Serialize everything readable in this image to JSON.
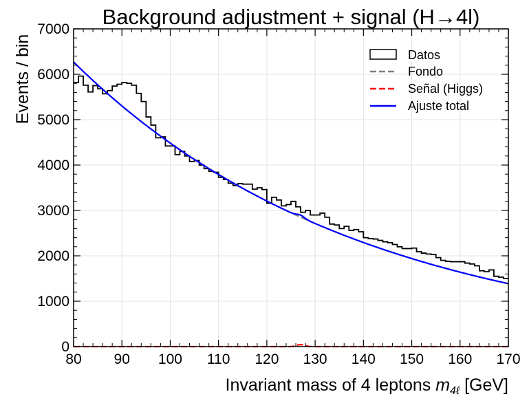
{
  "chart_data": {
    "type": "histogram",
    "title": "Background adjustment + signal (H→4l)",
    "xlabel_prefix": "Invariant mass of 4 leptons ",
    "xlabel_symbol": "m",
    "xlabel_sub": "4ℓ",
    "xlabel_suffix": " [GeV]",
    "ylabel": "Events / bin",
    "xlim": [
      80,
      170
    ],
    "ylim": [
      0,
      7000
    ],
    "x_ticks": [
      "80",
      "90",
      "100",
      "110",
      "120",
      "130",
      "140",
      "150",
      "160",
      "170"
    ],
    "y_ticks": [
      "0",
      "1000",
      "2000",
      "3000",
      "4000",
      "5000",
      "6000",
      "7000"
    ],
    "grid": true,
    "legend_position": "upper right",
    "bin_edges_start": 80,
    "bin_width": 1,
    "series": [
      {
        "name": "Datos",
        "style": "step",
        "color": "#000000",
        "values": [
          5820,
          5960,
          5760,
          5610,
          5750,
          5680,
          5570,
          5640,
          5740,
          5780,
          5820,
          5800,
          5760,
          5580,
          5400,
          5060,
          4880,
          4600,
          4620,
          4420,
          4420,
          4230,
          4300,
          4200,
          4080,
          4100,
          4000,
          3920,
          3860,
          3840,
          3730,
          3680,
          3600,
          3550,
          3590,
          3580,
          3580,
          3470,
          3500,
          3460,
          3160,
          3290,
          3230,
          3100,
          3130,
          3200,
          3080,
          2960,
          3000,
          2900,
          2900,
          2940,
          2850,
          2700,
          2680,
          2600,
          2650,
          2560,
          2580,
          2530,
          2400,
          2380,
          2370,
          2340,
          2310,
          2290,
          2250,
          2200,
          2160,
          2160,
          2170,
          2090,
          2060,
          2040,
          2030,
          1960,
          1900,
          1880,
          1870,
          1870,
          1870,
          1840,
          1820,
          1780,
          1670,
          1650,
          1690,
          1550,
          1530,
          1500
        ]
      },
      {
        "name": "Fondo",
        "style": "dashed",
        "color": "#808080",
        "model": "exponential",
        "a": 6270,
        "b": 0.01676
      },
      {
        "name": "Señal (Higgs)",
        "style": "dashed",
        "color": "#ff0000",
        "model": "gaussian",
        "amplitude": 45,
        "mean": 127,
        "sigma": 0.8
      },
      {
        "name": "Ajuste total",
        "style": "solid",
        "color": "#0000ff",
        "model": "exponential+gaussian"
      }
    ]
  }
}
